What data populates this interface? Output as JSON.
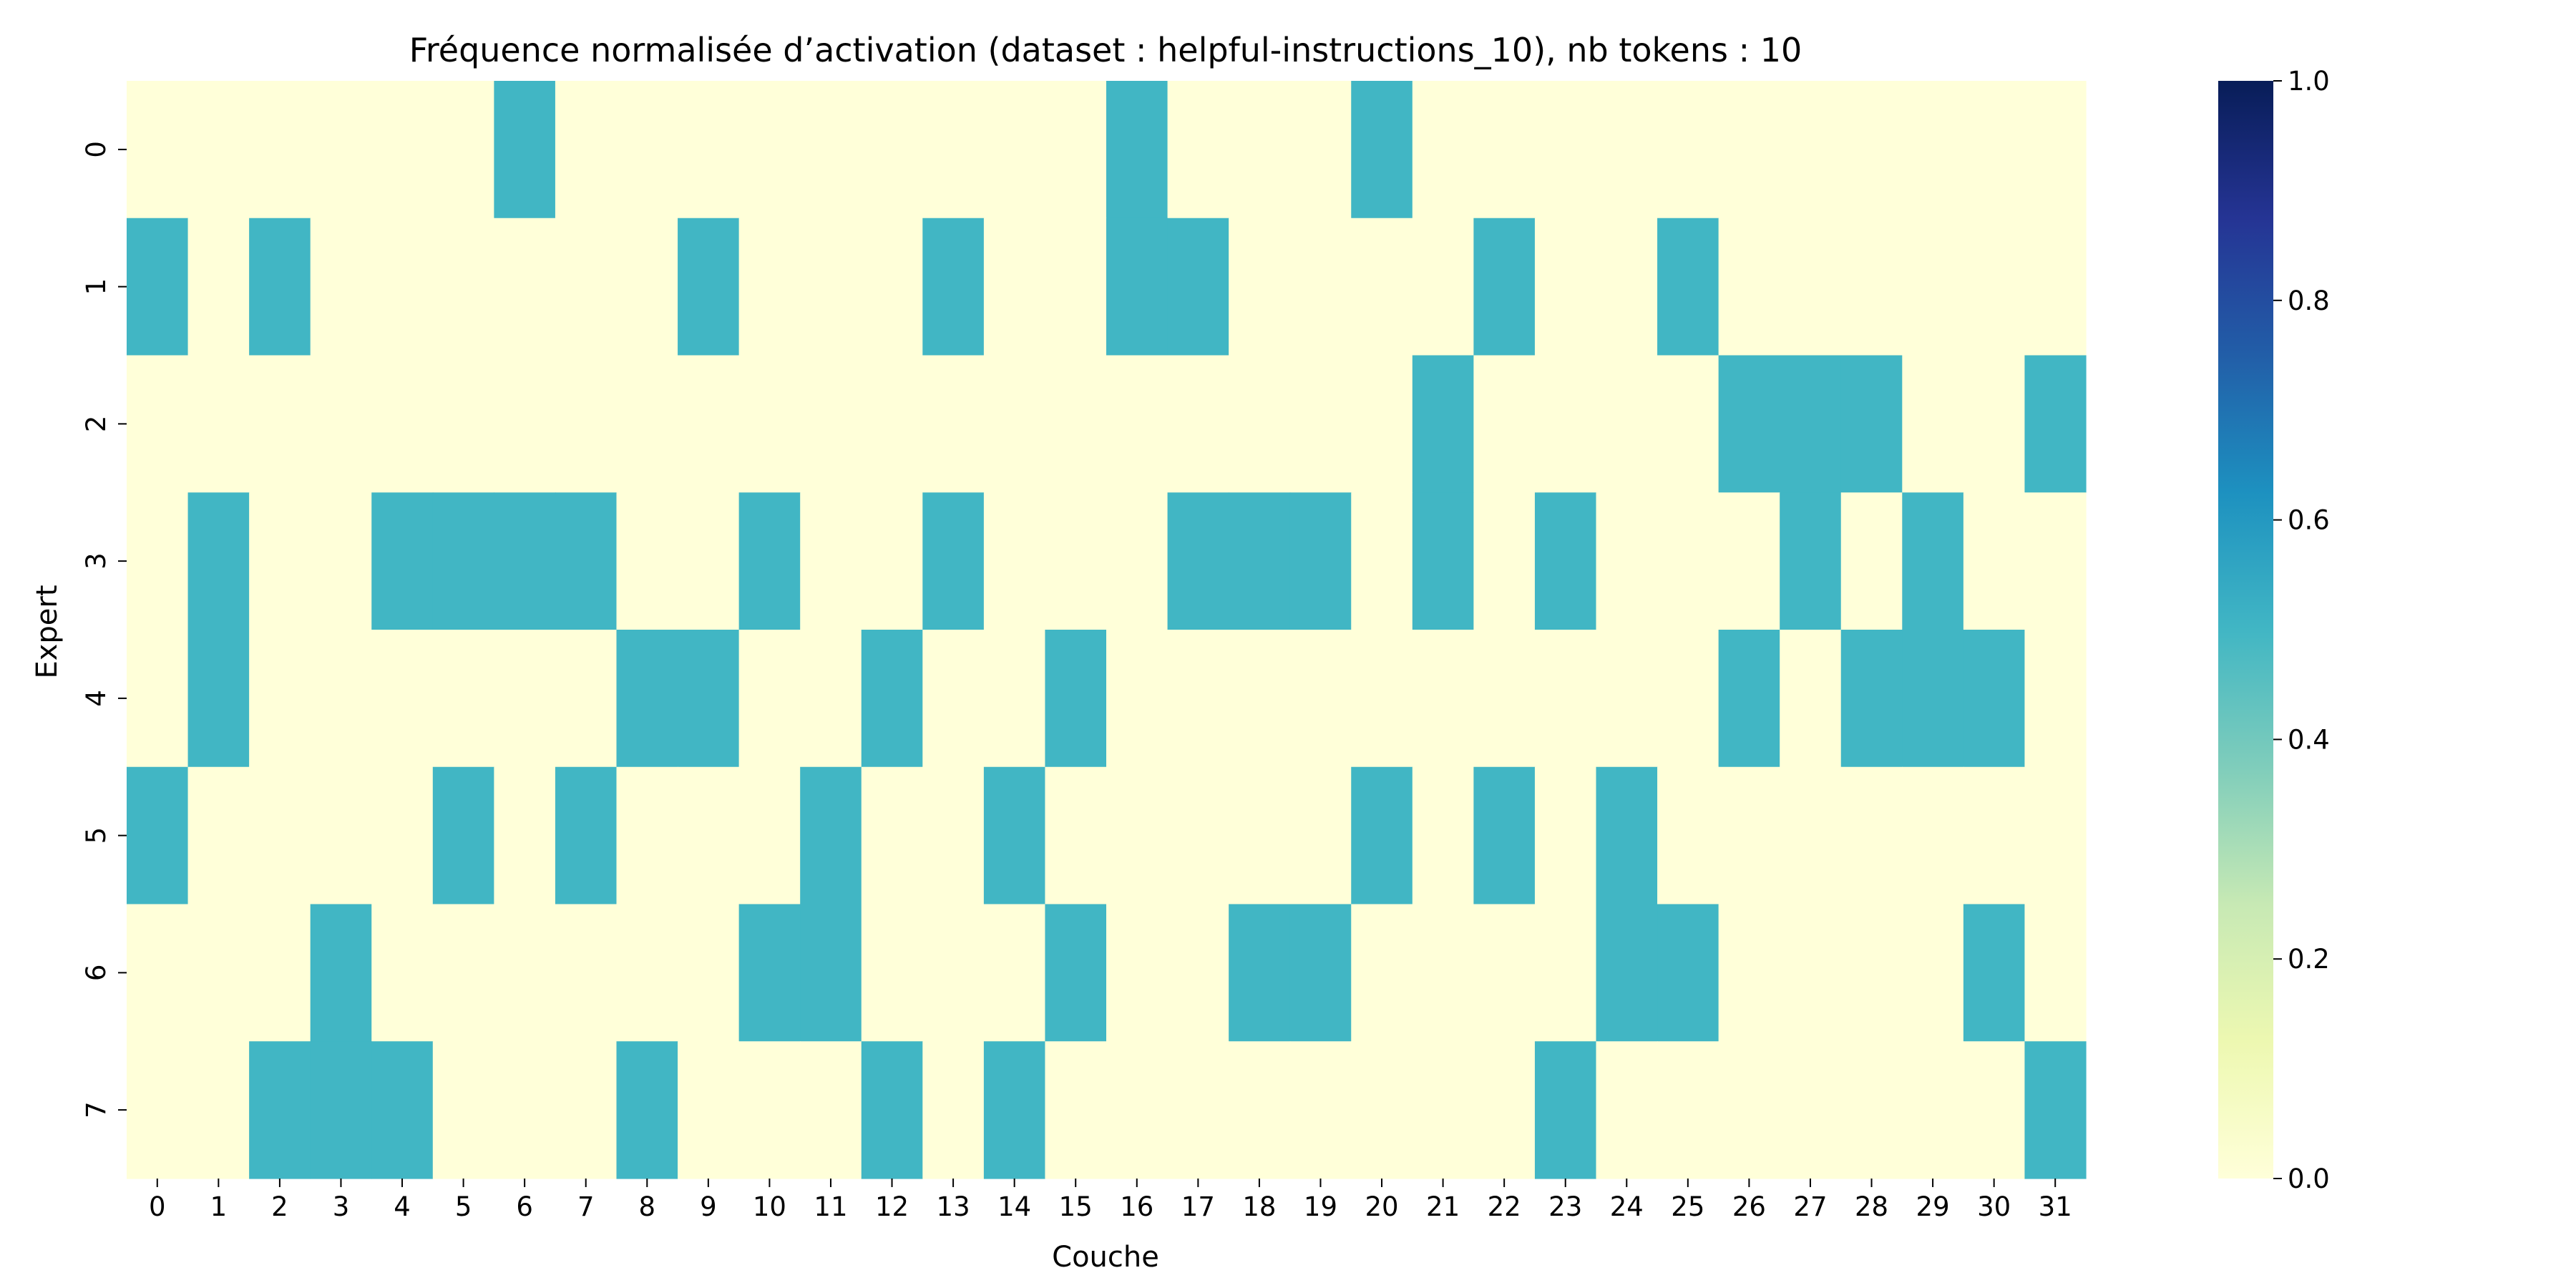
{
  "chart_data": {
    "type": "heatmap",
    "title": "Fréquence normalisée d’activation (dataset : helpful-instructions_10), nb tokens : 10",
    "xlabel": "Couche",
    "ylabel": "Expert",
    "x_categories": [
      "0",
      "1",
      "2",
      "3",
      "4",
      "5",
      "6",
      "7",
      "8",
      "9",
      "10",
      "11",
      "12",
      "13",
      "14",
      "15",
      "16",
      "17",
      "18",
      "19",
      "20",
      "21",
      "22",
      "23",
      "24",
      "25",
      "26",
      "27",
      "28",
      "29",
      "30",
      "31"
    ],
    "y_categories": [
      "0",
      "1",
      "2",
      "3",
      "4",
      "5",
      "6",
      "7"
    ],
    "values": [
      [
        0,
        0,
        0,
        0,
        0,
        0,
        0.5,
        0,
        0,
        0,
        0,
        0,
        0,
        0,
        0,
        0,
        0.5,
        0,
        0,
        0,
        0.5,
        0,
        0,
        0,
        0,
        0,
        0,
        0,
        0,
        0,
        0,
        0
      ],
      [
        0.5,
        0,
        0.5,
        0,
        0,
        0,
        0,
        0,
        0,
        0.5,
        0,
        0,
        0,
        0.5,
        0,
        0,
        0.5,
        0.5,
        0,
        0,
        0,
        0,
        0.5,
        0,
        0,
        0.5,
        0,
        0,
        0,
        0,
        0,
        0
      ],
      [
        0,
        0,
        0,
        0,
        0,
        0,
        0,
        0,
        0,
        0,
        0,
        0,
        0,
        0,
        0,
        0,
        0,
        0,
        0,
        0,
        0,
        0.5,
        0,
        0,
        0,
        0,
        0.5,
        0.5,
        0.5,
        0,
        0,
        0.5
      ],
      [
        0,
        0.5,
        0,
        0,
        0.5,
        0.5,
        0.5,
        0.5,
        0,
        0,
        0.5,
        0,
        0,
        0.5,
        0,
        0,
        0,
        0.5,
        0.5,
        0.5,
        0,
        0.5,
        0,
        0.5,
        0,
        0,
        0,
        0.5,
        0,
        0.5,
        0,
        0
      ],
      [
        0,
        0.5,
        0,
        0,
        0,
        0,
        0,
        0,
        0.5,
        0.5,
        0,
        0,
        0.5,
        0,
        0,
        0.5,
        0,
        0,
        0,
        0,
        0,
        0,
        0,
        0,
        0,
        0,
        0.5,
        0,
        0.5,
        0.5,
        0.5,
        0
      ],
      [
        0.5,
        0,
        0,
        0,
        0,
        0.5,
        0,
        0.5,
        0,
        0,
        0,
        0.5,
        0,
        0,
        0.5,
        0,
        0,
        0,
        0,
        0,
        0.5,
        0,
        0.5,
        0,
        0.5,
        0,
        0,
        0,
        0,
        0,
        0,
        0
      ],
      [
        0,
        0,
        0,
        0.5,
        0,
        0,
        0,
        0,
        0,
        0,
        0.5,
        0.5,
        0,
        0,
        0,
        0.5,
        0,
        0,
        0.5,
        0.5,
        0,
        0,
        0,
        0,
        0.5,
        0.5,
        0,
        0,
        0,
        0,
        0.5,
        0
      ],
      [
        0,
        0,
        0.5,
        0.5,
        0.5,
        0,
        0,
        0,
        0.5,
        0,
        0,
        0,
        0.5,
        0,
        0.5,
        0,
        0,
        0,
        0,
        0,
        0,
        0,
        0,
        0.5,
        0,
        0,
        0,
        0,
        0,
        0,
        0,
        0.5
      ]
    ],
    "colormap": "YlGnBu",
    "color_range": [
      0,
      1
    ],
    "colorbar_ticks": [
      "0.0",
      "0.2",
      "0.4",
      "0.6",
      "0.8",
      "1.0"
    ],
    "colorbar_stops": [
      {
        "v": 0.0,
        "c": "#ffffd9"
      },
      {
        "v": 0.125,
        "c": "#edf8b1"
      },
      {
        "v": 0.25,
        "c": "#c7e9b4"
      },
      {
        "v": 0.375,
        "c": "#7fcdbb"
      },
      {
        "v": 0.5,
        "c": "#41b6c4"
      },
      {
        "v": 0.625,
        "c": "#1d91c0"
      },
      {
        "v": 0.75,
        "c": "#225ea8"
      },
      {
        "v": 0.875,
        "c": "#253494"
      },
      {
        "v": 1.0,
        "c": "#081d58"
      }
    ],
    "grid": false,
    "legend": "colorbar-right"
  }
}
